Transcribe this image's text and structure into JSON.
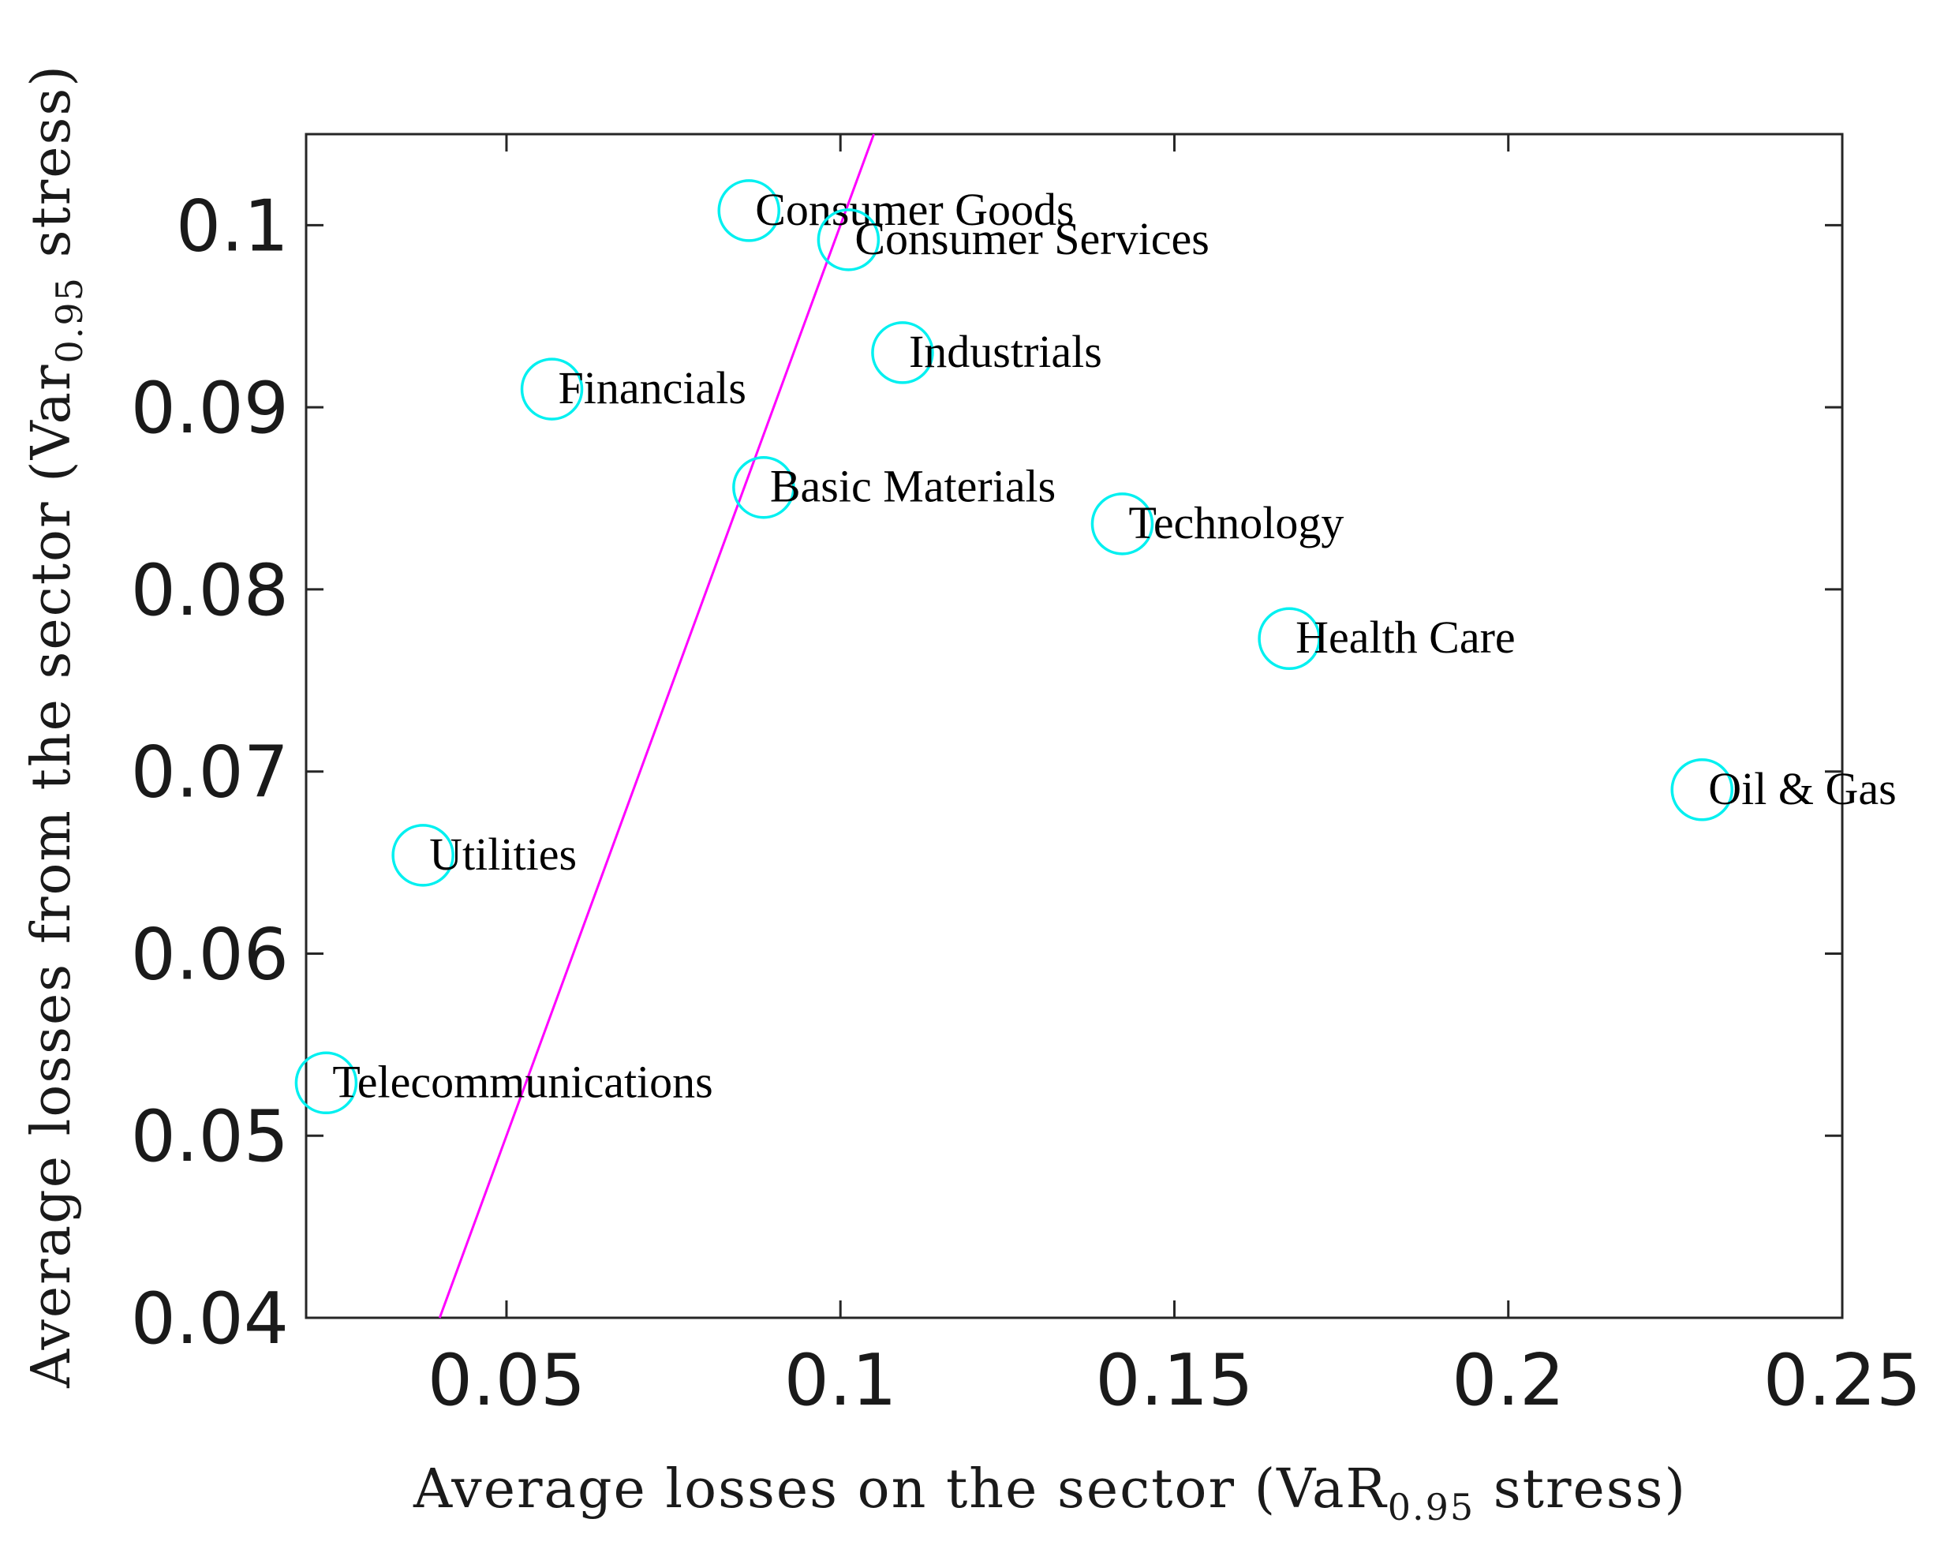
{
  "chart_data": {
    "type": "scatter",
    "xlabel": {
      "prefix": "Average losses on the sector (VaR",
      "sub": "0.95",
      "suffix": " stress)"
    },
    "ylabel": {
      "prefix": "Average losses from the sector (Var",
      "sub": "0.95",
      "suffix": " stress)"
    },
    "xlim": [
      0.02,
      0.25
    ],
    "ylim": [
      0.04,
      0.105
    ],
    "xticks": [
      0.05,
      0.1,
      0.15,
      0.2,
      0.25
    ],
    "xtick_labels": [
      "0.05",
      "0.1",
      "0.15",
      "0.2",
      "0.25"
    ],
    "yticks": [
      0.04,
      0.05,
      0.06,
      0.07,
      0.08,
      0.09,
      0.1
    ],
    "ytick_labels": [
      "0.04",
      "0.05",
      "0.06",
      "0.07",
      "0.08",
      "0.09",
      "0.1"
    ],
    "grid": false,
    "marker_color": "#00f0f0",
    "line_color": "#ff00ff",
    "points": [
      {
        "label": "Consumer Goods",
        "x": 0.0863,
        "y": 0.1008
      },
      {
        "label": "Consumer Services",
        "x": 0.1012,
        "y": 0.0992
      },
      {
        "label": "Industrials",
        "x": 0.1093,
        "y": 0.093
      },
      {
        "label": "Financials",
        "x": 0.0568,
        "y": 0.091
      },
      {
        "label": "Basic Materials",
        "x": 0.0885,
        "y": 0.0856
      },
      {
        "label": "Technology",
        "x": 0.1422,
        "y": 0.0836
      },
      {
        "label": "Health Care",
        "x": 0.1672,
        "y": 0.0773
      },
      {
        "label": "Oil & Gas",
        "x": 0.229,
        "y": 0.069
      },
      {
        "label": "Utilities",
        "x": 0.0375,
        "y": 0.0654
      },
      {
        "label": "Telecommunications",
        "x": 0.023,
        "y": 0.0529
      }
    ],
    "reference_line": {
      "x": [
        0.04,
        0.105
      ],
      "y": [
        0.04,
        0.105
      ]
    }
  }
}
